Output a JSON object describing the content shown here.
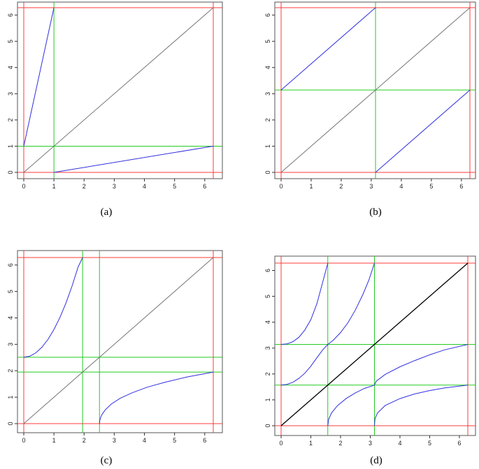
{
  "figure": {
    "panel_labels": [
      "(a)",
      "(b)",
      "(c)",
      "(d)"
    ]
  },
  "colors": {
    "frame": "#555555",
    "red_guides": "#ff3b3b",
    "green_guides": "#22cc22",
    "identity_line_light": "#777777",
    "identity_line_dark": "#000000",
    "curves": "#3030e0"
  },
  "chart_data": [
    {
      "type": "line",
      "panel": "(a)",
      "xlim": [
        0,
        6.2832
      ],
      "ylim": [
        0,
        6.2832
      ],
      "x_ticks": [
        0,
        1,
        2,
        3,
        4,
        5,
        6
      ],
      "y_ticks": [
        0,
        1,
        2,
        3,
        4,
        5,
        6
      ],
      "red_hlines": [
        0,
        6.2832
      ],
      "red_vlines": [
        0,
        6.2832
      ],
      "green_hlines": [
        1
      ],
      "green_vlines": [
        1
      ],
      "series": [
        {
          "role": "identity",
          "x": [
            0,
            6.2832
          ],
          "y": [
            0,
            6.2832
          ]
        },
        {
          "role": "curve",
          "x": [
            0,
            1
          ],
          "y": [
            1,
            6.2832
          ]
        },
        {
          "role": "curve",
          "x": [
            1,
            6.2832
          ],
          "y": [
            0,
            1
          ]
        }
      ]
    },
    {
      "type": "line",
      "panel": "(b)",
      "xlim": [
        0,
        6.2832
      ],
      "ylim": [
        0,
        6.2832
      ],
      "x_ticks": [
        0,
        1,
        2,
        3,
        4,
        5,
        6
      ],
      "y_ticks": [
        0,
        1,
        2,
        3,
        4,
        5,
        6
      ],
      "red_hlines": [
        0,
        6.2832
      ],
      "red_vlines": [
        0,
        6.2832
      ],
      "green_hlines": [
        3.1416
      ],
      "green_vlines": [
        3.1416
      ],
      "series": [
        {
          "role": "identity",
          "x": [
            0,
            6.2832
          ],
          "y": [
            0,
            6.2832
          ]
        },
        {
          "role": "curve",
          "x": [
            0,
            3.1416
          ],
          "y": [
            3.1416,
            6.2832
          ]
        },
        {
          "role": "curve",
          "x": [
            3.1416,
            6.2832
          ],
          "y": [
            0,
            3.1416
          ]
        }
      ]
    },
    {
      "type": "line",
      "panel": "(c)",
      "xlim": [
        0,
        6.2832
      ],
      "ylim": [
        0,
        6.2832
      ],
      "x_ticks": [
        0,
        1,
        2,
        3,
        4,
        5,
        6
      ],
      "y_ticks": [
        0,
        1,
        2,
        3,
        4,
        5,
        6
      ],
      "red_hlines": [
        0,
        6.2832
      ],
      "red_vlines": [
        0,
        6.2832
      ],
      "green_hlines": [
        1.95,
        2.51
      ],
      "green_vlines": [
        1.95,
        2.51
      ],
      "series": [
        {
          "role": "identity",
          "x": [
            0,
            6.2832
          ],
          "y": [
            0,
            6.2832
          ]
        },
        {
          "role": "curve",
          "x": [
            0,
            0.2,
            0.4,
            0.6,
            0.8,
            1.0,
            1.2,
            1.4,
            1.6,
            1.8,
            1.95
          ],
          "y": [
            2.51,
            2.55,
            2.68,
            2.89,
            3.18,
            3.56,
            4.02,
            4.57,
            5.2,
            5.92,
            6.28
          ]
        },
        {
          "role": "curve",
          "x": [
            2.51,
            2.52,
            2.55,
            2.6,
            2.7,
            2.9,
            3.2,
            3.6,
            4.1,
            4.7,
            5.4,
            6.2832
          ],
          "y": [
            0,
            0.12,
            0.24,
            0.36,
            0.52,
            0.74,
            0.96,
            1.17,
            1.38,
            1.57,
            1.76,
            1.95
          ]
        }
      ]
    },
    {
      "type": "line",
      "panel": "(d)",
      "xlim": [
        0,
        6.2832
      ],
      "ylim": [
        0,
        6.2832
      ],
      "x_ticks": [
        0,
        1,
        2,
        3,
        4,
        5,
        6
      ],
      "y_ticks": [
        0,
        1,
        2,
        3,
        4,
        5,
        6
      ],
      "red_hlines": [
        0,
        6.2832
      ],
      "red_vlines": [
        0,
        6.2832
      ],
      "green_hlines": [
        1.5708,
        3.1416
      ],
      "green_vlines": [
        1.5708,
        3.1416
      ],
      "series": [
        {
          "role": "identity",
          "x": [
            0,
            6.2832
          ],
          "y": [
            0,
            6.2832
          ]
        },
        {
          "role": "curve",
          "x": [
            0,
            0.2,
            0.4,
            0.6,
            0.8,
            1.0,
            1.2,
            1.4,
            1.5708
          ],
          "y": [
            3.1416,
            3.16,
            3.25,
            3.42,
            3.7,
            4.1,
            4.7,
            5.55,
            6.2832
          ]
        },
        {
          "role": "curve",
          "x": [
            1.5708,
            1.75,
            2.0,
            2.25,
            2.5,
            2.75,
            2.95,
            3.1416
          ],
          "y": [
            3.1416,
            3.3,
            3.6,
            3.98,
            4.47,
            5.07,
            5.62,
            6.2832
          ]
        },
        {
          "role": "curve",
          "x": [
            0,
            0.2,
            0.4,
            0.6,
            0.8,
            1.0,
            1.2,
            1.4,
            1.5708
          ],
          "y": [
            1.5708,
            1.6,
            1.68,
            1.83,
            2.03,
            2.3,
            2.62,
            2.93,
            3.1416
          ]
        },
        {
          "role": "curve",
          "x": [
            1.5708,
            1.6,
            1.7,
            1.9,
            2.2,
            2.5,
            2.8,
            3.1416
          ],
          "y": [
            0,
            0.25,
            0.5,
            0.78,
            1.06,
            1.27,
            1.44,
            1.5708
          ]
        },
        {
          "role": "curve",
          "x": [
            3.1416,
            3.2,
            3.5,
            4.0,
            4.5,
            5.0,
            5.5,
            6.2832
          ],
          "y": [
            1.5708,
            1.72,
            1.98,
            2.28,
            2.52,
            2.74,
            2.93,
            3.1416
          ]
        },
        {
          "role": "curve",
          "x": [
            3.1416,
            3.16,
            3.25,
            3.5,
            4.0,
            4.5,
            5.0,
            5.5,
            6.2832
          ],
          "y": [
            0,
            0.28,
            0.5,
            0.78,
            1.05,
            1.23,
            1.36,
            1.46,
            1.5708
          ]
        }
      ]
    }
  ]
}
